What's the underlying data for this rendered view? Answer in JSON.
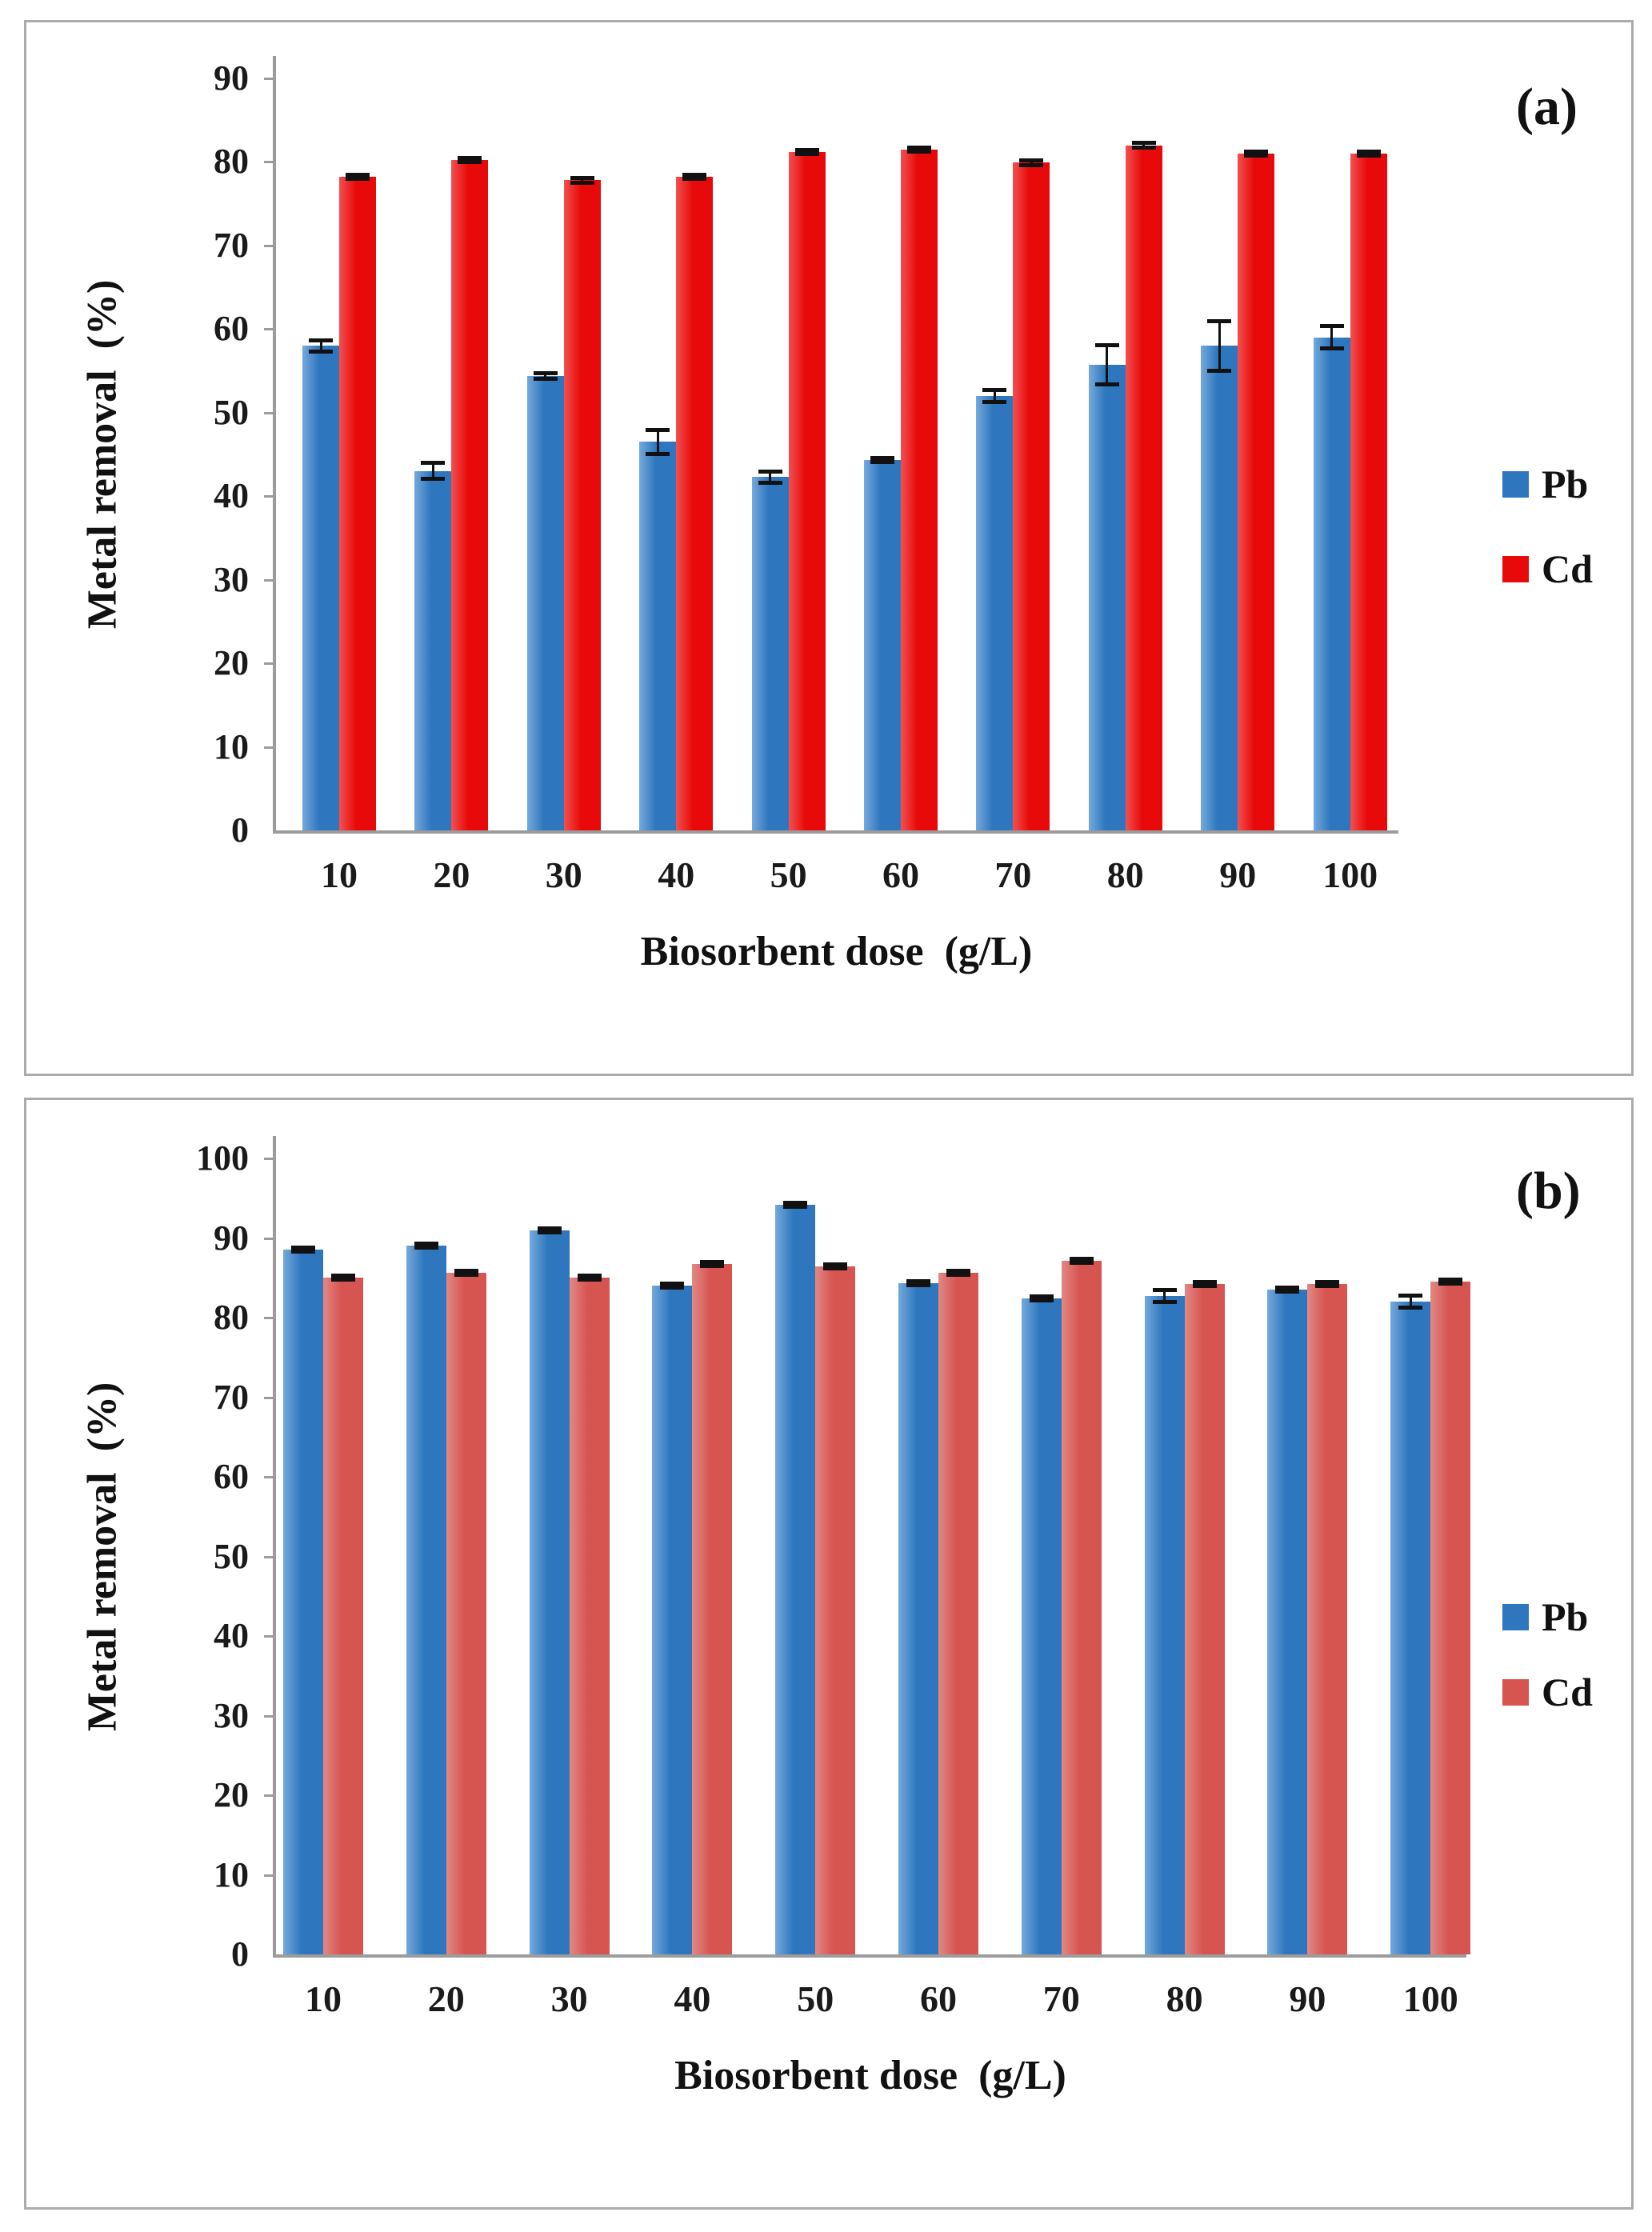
{
  "figure": {
    "background": "#FFFFFF",
    "panel_border_color": "#ABABAB"
  },
  "chart_data": [
    {
      "type": "bar",
      "title": "(a)",
      "xlabel": "Biosorbent dose  (g/L)",
      "ylabel": "Metal removal  (%)",
      "ylim": [
        0,
        90
      ],
      "ytick_step": 10,
      "grid": false,
      "legend_position": "right",
      "axis_color": "#9C9C9C",
      "error_bar_color": "#111111",
      "categories": [
        "10",
        "20",
        "30",
        "40",
        "50",
        "60",
        "70",
        "80",
        "90",
        "100"
      ],
      "series": [
        {
          "name": "Pb",
          "color": "#2E77BE",
          "color_light": "#74A9DC",
          "values": [
            58,
            43,
            54.4,
            46.5,
            42.3,
            44.3,
            52,
            55.7,
            58,
            59
          ],
          "errors": [
            0.7,
            1.0,
            0.4,
            1.5,
            0.7,
            0.3,
            0.8,
            2.4,
            3.0,
            1.4
          ]
        },
        {
          "name": "Cd",
          "color": "#E80A0A",
          "color_light": "#F25050",
          "values": [
            78.2,
            80.2,
            77.8,
            78.2,
            81.2,
            81.5,
            79.9,
            82,
            81,
            81
          ],
          "errors": [
            0.3,
            0.3,
            0.3,
            0.3,
            0.3,
            0.3,
            0.3,
            0.3,
            0.3,
            0.3
          ]
        }
      ]
    },
    {
      "type": "bar",
      "title": "(b)",
      "xlabel": "Biosorbent dose  (g/L)",
      "ylabel": "Metal removal  (%)",
      "ylim": [
        0,
        100
      ],
      "ytick_step": 10,
      "grid": false,
      "legend_position": "right",
      "axis_color": "#9C9C9C",
      "error_bar_color": "#111111",
      "categories": [
        "10",
        "20",
        "30",
        "40",
        "50",
        "60",
        "70",
        "80",
        "90",
        "100"
      ],
      "series": [
        {
          "name": "Pb",
          "color": "#2E77BE",
          "color_light": "#74A9DC",
          "values": [
            88.5,
            89,
            91,
            84,
            94.2,
            84.3,
            82.4,
            82.7,
            83.5,
            82
          ],
          "errors": [
            0.3,
            0.3,
            0.3,
            0.3,
            0.3,
            0.3,
            0.3,
            0.8,
            0.3,
            0.8
          ]
        },
        {
          "name": "Cd",
          "color": "#D65551",
          "color_light": "#E28884",
          "values": [
            85,
            85.6,
            85,
            86.7,
            86.4,
            85.6,
            87.1,
            84.2,
            84.2,
            84.5
          ],
          "errors": [
            0.3,
            0.3,
            0.3,
            0.3,
            0.3,
            0.3,
            0.3,
            0.3,
            0.3,
            0.3
          ]
        }
      ]
    }
  ]
}
